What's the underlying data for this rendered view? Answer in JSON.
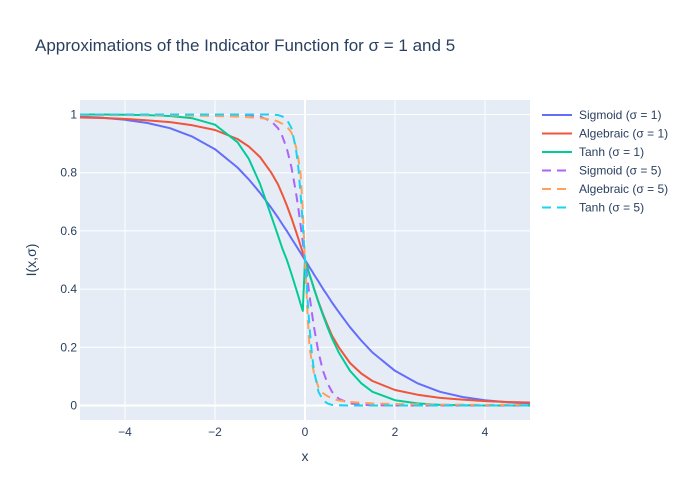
{
  "chart_data": {
    "type": "line",
    "title": "Approximations of the Indicator Function for σ = 1 and 5",
    "xlabel": "x",
    "ylabel": "I(x,σ)",
    "xlim": [
      -5,
      5
    ],
    "ylim": [
      -0.05,
      1.05
    ],
    "x_ticks": [
      -4,
      -2,
      0,
      2,
      4
    ],
    "x_tick_labels": [
      "−4",
      "−2",
      "0",
      "2",
      "4"
    ],
    "y_ticks": [
      0,
      0.2,
      0.4,
      0.6,
      0.8,
      1
    ],
    "y_tick_labels": [
      "0",
      "0.2",
      "0.4",
      "0.6",
      "0.8",
      "1"
    ],
    "grid": true,
    "legend_position": "right",
    "plot_background": "#e5ecf6",
    "x": [
      -5,
      -4.5,
      -4,
      -3.5,
      -3,
      -2.5,
      -2,
      -1.5,
      -1.25,
      -1,
      -0.75,
      -0.6,
      -0.5,
      -0.4,
      -0.3,
      -0.2,
      -0.15,
      -0.1,
      -0.05,
      0,
      0.05,
      0.1,
      0.15,
      0.2,
      0.3,
      0.4,
      0.5,
      0.6,
      0.75,
      1,
      1.25,
      1.5,
      2,
      2.5,
      3,
      3.5,
      4,
      4.5,
      5
    ],
    "series": [
      {
        "name": "Sigmoid (σ = 1)",
        "color": "#636efa",
        "dash": "solid",
        "values": [
          0.993,
          0.989,
          0.982,
          0.971,
          0.953,
          0.924,
          0.881,
          0.818,
          0.777,
          0.731,
          0.679,
          0.646,
          0.622,
          0.599,
          0.574,
          0.55,
          0.537,
          0.525,
          0.512,
          0.5,
          0.488,
          0.475,
          0.463,
          0.45,
          0.426,
          0.401,
          0.378,
          0.354,
          0.321,
          0.269,
          0.223,
          0.182,
          0.119,
          0.076,
          0.047,
          0.029,
          0.018,
          0.011,
          0.007
        ]
      },
      {
        "name": "Algebraic (σ = 1)",
        "color": "#ef553b",
        "dash": "solid",
        "values": [
          0.99,
          0.988,
          0.985,
          0.98,
          0.974,
          0.963,
          0.947,
          0.916,
          0.89,
          0.854,
          0.8,
          0.76,
          0.724,
          0.686,
          0.644,
          0.598,
          0.574,
          0.55,
          0.525,
          0.5,
          0.475,
          0.45,
          0.426,
          0.402,
          0.356,
          0.314,
          0.276,
          0.24,
          0.2,
          0.146,
          0.11,
          0.084,
          0.053,
          0.037,
          0.026,
          0.02,
          0.015,
          0.012,
          0.01
        ]
      },
      {
        "name": "Tanh (σ = 1)",
        "color": "#00cc96",
        "dash": "solid",
        "values": [
          1.0,
          1.0,
          0.999,
          0.998,
          0.995,
          0.987,
          0.965,
          0.905,
          0.848,
          0.762,
          0.651,
          0.584,
          0.538,
          0.499,
          0.452,
          0.402,
          0.376,
          0.35,
          0.325,
          0.5,
          0.475,
          0.45,
          0.426,
          0.401,
          0.354,
          0.31,
          0.269,
          0.231,
          0.182,
          0.119,
          0.076,
          0.047,
          0.018,
          0.007,
          0.002,
          0.001,
          0.0,
          0.0,
          0.0
        ]
      },
      {
        "name": "Sigmoid (σ = 5)",
        "color": "#ab63fa",
        "dash": "dash",
        "values": [
          1.0,
          1.0,
          1.0,
          1.0,
          1.0,
          1.0,
          1.0,
          0.999,
          0.998,
          0.993,
          0.977,
          0.953,
          0.924,
          0.881,
          0.818,
          0.731,
          0.679,
          0.622,
          0.562,
          0.5,
          0.438,
          0.378,
          0.321,
          0.269,
          0.182,
          0.119,
          0.076,
          0.047,
          0.023,
          0.007,
          0.002,
          0.001,
          0.0,
          0.0,
          0.0,
          0.0,
          0.0,
          0.0,
          0.0
        ]
      },
      {
        "name": "Algebraic (σ = 5)",
        "color": "#ffa15a",
        "dash": "dash",
        "values": [
          0.998,
          0.998,
          0.998,
          0.997,
          0.997,
          0.996,
          0.995,
          0.993,
          0.991,
          0.988,
          0.983,
          0.976,
          0.968,
          0.958,
          0.938,
          0.889,
          0.849,
          0.8,
          0.671,
          0.5,
          0.329,
          0.2,
          0.151,
          0.111,
          0.062,
          0.042,
          0.032,
          0.024,
          0.017,
          0.012,
          0.009,
          0.007,
          0.005,
          0.004,
          0.003,
          0.003,
          0.002,
          0.002,
          0.002
        ]
      },
      {
        "name": "Tanh (σ = 5)",
        "color": "#19d3f3",
        "dash": "dash",
        "values": [
          1.0,
          1.0,
          1.0,
          1.0,
          1.0,
          1.0,
          1.0,
          1.0,
          1.0,
          1.0,
          1.0,
          0.998,
          0.993,
          0.982,
          0.953,
          0.881,
          0.818,
          0.731,
          0.622,
          0.5,
          0.378,
          0.269,
          0.182,
          0.119,
          0.047,
          0.018,
          0.007,
          0.002,
          0.001,
          0.0,
          0.0,
          0.0,
          0.0,
          0.0,
          0.0,
          0.0,
          0.0,
          0.0,
          0.0
        ]
      }
    ]
  }
}
